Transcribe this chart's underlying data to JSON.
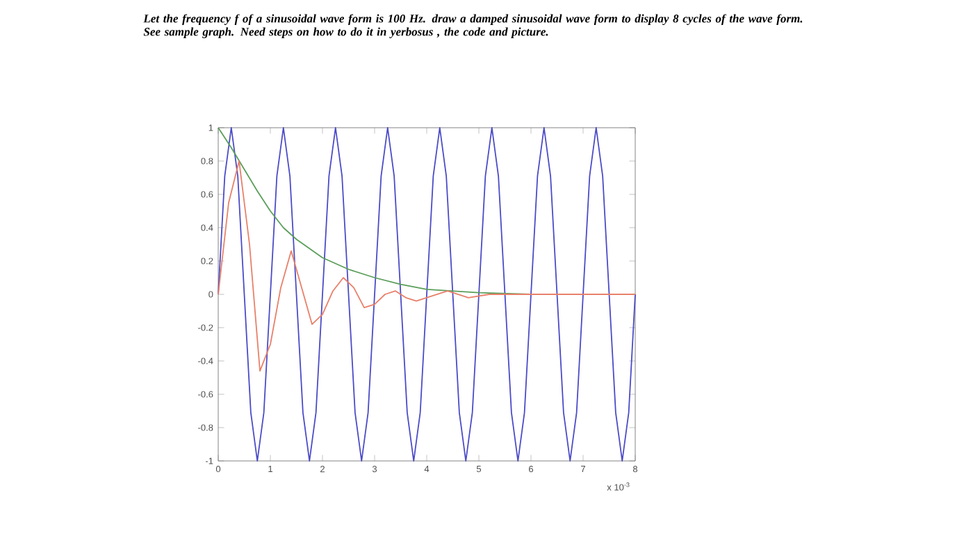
{
  "chart_data": {
    "type": "line",
    "title": "Let the frequency f of a sinusoidal wave form is 100 Hz. draw a damped sinusoidal wave form to display 8 cycles of the wave form. See sample graph. Need steps on how to do it in yerbosus , the code and picture.",
    "xlim": [
      0,
      8
    ],
    "xticks": [
      0,
      1,
      2,
      3,
      4,
      5,
      6,
      7,
      8
    ],
    "ylim": [
      -1,
      1
    ],
    "yticks": [
      -1,
      -0.8,
      -0.6,
      -0.4,
      -0.2,
      0,
      0.2,
      0.4,
      0.6,
      0.8,
      1
    ],
    "annotations": [
      "x 10$^{-3}$"
    ],
    "grid": false,
    "marker": "none",
    "line_style": "solid",
    "series": [
      {
        "color": "#4b4bc8",
        "x": [
          0,
          0.125,
          0.25,
          0.375,
          0.5,
          0.625,
          0.75,
          0.875,
          1,
          1.125,
          1.25,
          1.375,
          1.5,
          1.625,
          1.75,
          1.875,
          2,
          2.125,
          2.25,
          2.375,
          2.5,
          2.625,
          2.75,
          2.875,
          3,
          3.125,
          3.25,
          3.375,
          3.5,
          3.625,
          3.75,
          3.875,
          4,
          4.125,
          4.25,
          4.375,
          4.5,
          4.625,
          4.75,
          4.875,
          5,
          5.125,
          5.25,
          5.375,
          5.5,
          5.625,
          5.75,
          5.875,
          6,
          6.125,
          6.25,
          6.375,
          6.5,
          6.625,
          6.75,
          6.875,
          7,
          7.125,
          7.25,
          7.375,
          7.5,
          7.625,
          7.75,
          7.875,
          8
        ],
        "values": [
          0,
          0.71,
          1,
          0.71,
          0,
          -0.71,
          -1,
          -0.71,
          0,
          0.71,
          1,
          0.71,
          0,
          -0.71,
          -1,
          -0.71,
          0,
          0.71,
          1,
          0.71,
          0,
          -0.71,
          -1,
          -0.71,
          0,
          0.71,
          1,
          0.71,
          0,
          -0.71,
          -1,
          -0.71,
          0,
          0.71,
          1,
          0.71,
          0,
          -0.71,
          -1,
          -0.71,
          0,
          0.71,
          1,
          0.71,
          0,
          -0.71,
          -1,
          -0.71,
          0,
          0.71,
          1,
          0.71,
          0,
          -0.71,
          -1,
          -0.71,
          0,
          0.71,
          1,
          0.71,
          0,
          -0.71,
          -1,
          -0.71,
          0
        ]
      },
      {
        "color": "#5a9e5a",
        "x": [
          0,
          0.25,
          0.5,
          0.75,
          1,
          1.25,
          1.5,
          2,
          2.5,
          3,
          3.5,
          4,
          5,
          6,
          8
        ],
        "values": [
          1,
          0.88,
          0.75,
          0.62,
          0.5,
          0.4,
          0.33,
          0.22,
          0.15,
          0.1,
          0.06,
          0.03,
          0.01,
          0,
          0
        ]
      },
      {
        "color": "#e8806a",
        "x": [
          0,
          0.2,
          0.4,
          0.6,
          0.8,
          1,
          1.2,
          1.4,
          1.6,
          1.8,
          2,
          2.2,
          2.4,
          2.6,
          2.8,
          3,
          3.2,
          3.4,
          3.6,
          3.8,
          4,
          4.4,
          4.8,
          5.2,
          8
        ],
        "values": [
          0,
          0.55,
          0.8,
          0.3,
          -0.46,
          -0.3,
          0.04,
          0.26,
          0.04,
          -0.18,
          -0.12,
          0.02,
          0.1,
          0.04,
          -0.08,
          -0.06,
          0,
          0.02,
          -0.02,
          -0.04,
          -0.02,
          0.02,
          -0.02,
          0,
          0
        ]
      }
    ]
  }
}
